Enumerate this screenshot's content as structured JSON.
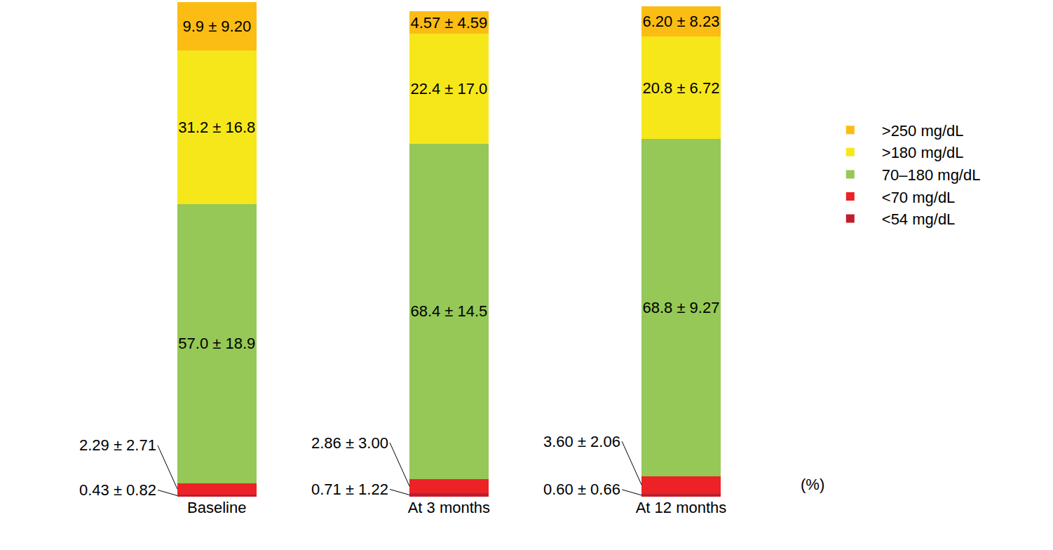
{
  "chart_data": {
    "type": "bar",
    "stacked": true,
    "data_labels": true,
    "tick_labels": "x",
    "grid": false,
    "legend": "right",
    "categories": [
      "Baseline",
      "At 3 months",
      "At 12 months"
    ],
    "ylim": [
      0,
      101
    ],
    "yticks": [],
    "annotations": [
      "(%)"
    ],
    "series": [
      {
        "name": "<54 mg/dL",
        "color": "#be1e2d",
        "values": [
          0.43,
          0.71,
          0.6
        ],
        "sd": [
          0.82,
          1.22,
          0.66
        ],
        "value_labels": [
          "0.43 ± 0.82",
          "0.71 ± 1.22",
          "0.60 ± 0.66"
        ]
      },
      {
        "name": "<70 mg/dL",
        "color": "#ec2227",
        "values": [
          2.29,
          2.86,
          3.6
        ],
        "sd": [
          2.71,
          3.0,
          2.06
        ],
        "value_labels": [
          "2.29 ± 2.71",
          "2.86 ± 3.00",
          "3.60 ± 2.06"
        ]
      },
      {
        "name": "70–180 mg/dL",
        "color": "#95c856",
        "values": [
          57.0,
          68.4,
          68.8
        ],
        "sd": [
          18.9,
          14.5,
          9.27
        ],
        "value_labels": [
          "57.0 ± 18.9",
          "68.4 ± 14.5",
          "68.8 ± 9.27"
        ]
      },
      {
        "name": ">180 mg/dL",
        "color": "#f6e71b",
        "values": [
          31.2,
          22.4,
          20.8
        ],
        "sd": [
          16.8,
          17.0,
          6.72
        ],
        "value_labels": [
          "31.2 ± 16.8",
          "22.4 ± 17.0",
          "20.8 ± 6.72"
        ]
      },
      {
        "name": ">250 mg/dL",
        "color": "#fbbc14",
        "values": [
          9.9,
          4.57,
          6.2
        ],
        "sd": [
          9.2,
          4.59,
          8.23
        ],
        "value_labels": [
          "9.9 ± 9.20",
          "4.57 ± 4.59",
          "6.20 ± 8.23"
        ]
      }
    ]
  }
}
